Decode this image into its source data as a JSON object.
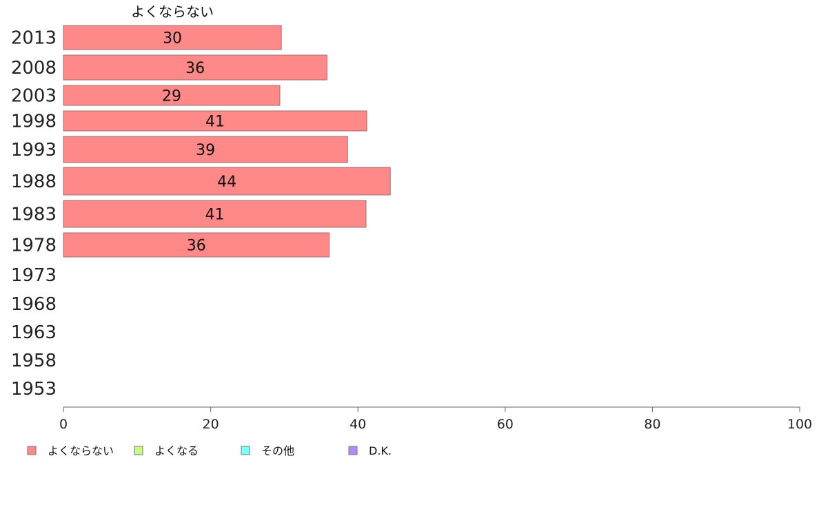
{
  "chart_data": {
    "type": "bar",
    "orientation": "horizontal",
    "series_title": "よくならない",
    "categories": [
      "2013",
      "2008",
      "2003",
      "1998",
      "1993",
      "1988",
      "1983",
      "1978",
      "1973",
      "1968",
      "1963",
      "1958",
      "1953"
    ],
    "series": [
      {
        "name": "よくならない",
        "color": "#ff8888",
        "values": [
          30,
          36,
          29,
          41,
          39,
          44,
          41,
          36,
          null,
          null,
          null,
          null,
          null
        ],
        "plotted": [
          29.6,
          35.8,
          29.4,
          41.2,
          38.6,
          44.4,
          41.1,
          36.1,
          null,
          null,
          null,
          null,
          null
        ]
      }
    ],
    "xlim": [
      0,
      100
    ],
    "xticks": [
      "0",
      "20",
      "40",
      "60",
      "80",
      "100"
    ],
    "legend": [
      {
        "label": "よくならない",
        "color": "#ff8888"
      },
      {
        "label": "よくなる",
        "color": "#c8ff80"
      },
      {
        "label": "その他",
        "color": "#80ffff"
      },
      {
        "label": "D.K.",
        "color": "#b088ff"
      }
    ],
    "legend_position": "bottom-left",
    "grid": false
  }
}
